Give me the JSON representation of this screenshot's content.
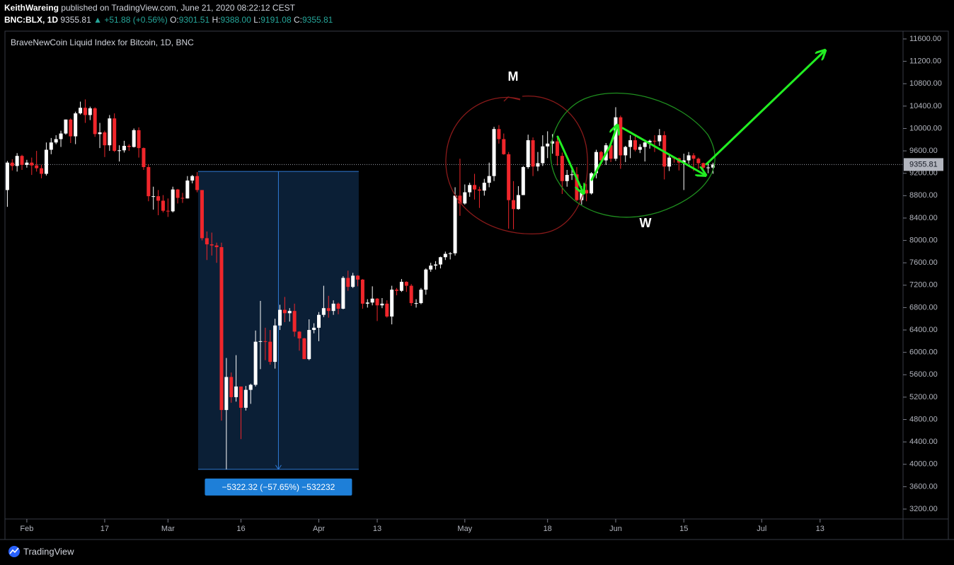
{
  "header": {
    "author": "KeithWareing",
    "published": "published on TradingView.com, June 21, 2020 08:22:12 CEST",
    "symbol": "BNC:BLX, 1D",
    "last": "9355.81",
    "change": "+51.88 (+0.56%)",
    "open_label": "O:",
    "open": "9301.51",
    "high_label": "H:",
    "high": "9388.00",
    "low_label": "L:",
    "low": "9191.08",
    "close_label": "C:",
    "close": "9355.81"
  },
  "footer": {
    "brand": "TradingView"
  },
  "chart_data": {
    "type": "candlestick",
    "title": "BraveNewCoin Liquid Index for Bitcoin, 1D, BNC",
    "up_color": "#ffffff",
    "down_color": "#f0262b",
    "xlim": [
      -0.35,
      183.9
    ],
    "ylim": [
      3023,
      11739
    ],
    "xticks": [
      {
        "value": 4,
        "label": "Feb"
      },
      {
        "value": 20,
        "label": "17"
      },
      {
        "value": 33,
        "label": "Mar"
      },
      {
        "value": 48,
        "label": "16"
      },
      {
        "value": 64,
        "label": "Apr"
      },
      {
        "value": 76,
        "label": "13"
      },
      {
        "value": 94,
        "label": "May"
      },
      {
        "value": 111,
        "label": "18"
      },
      {
        "value": 125,
        "label": "Jun"
      },
      {
        "value": 139,
        "label": "15"
      },
      {
        "value": 155,
        "label": "Jul"
      },
      {
        "value": 167,
        "label": "13"
      }
    ],
    "yticks": [
      {
        "value": 3200,
        "label": "3200.00"
      },
      {
        "value": 3600,
        "label": "3600.00"
      },
      {
        "value": 4000,
        "label": "4000.00"
      },
      {
        "value": 4400,
        "label": "4400.00"
      },
      {
        "value": 4800,
        "label": "4800.00"
      },
      {
        "value": 5200,
        "label": "5200.00"
      },
      {
        "value": 5600,
        "label": "5600.00"
      },
      {
        "value": 6000,
        "label": "6000.00"
      },
      {
        "value": 6400,
        "label": "6400.00"
      },
      {
        "value": 6800,
        "label": "6800.00"
      },
      {
        "value": 7200,
        "label": "7200.00"
      },
      {
        "value": 7600,
        "label": "7600.00"
      },
      {
        "value": 8000,
        "label": "8000.00"
      },
      {
        "value": 8400,
        "label": "8400.00"
      },
      {
        "value": 8800,
        "label": "8800.00"
      },
      {
        "value": 9200,
        "label": "9200.00"
      },
      {
        "value": 9600,
        "label": "9600.00"
      },
      {
        "value": 10000,
        "label": "10000.00"
      },
      {
        "value": 10400,
        "label": "10400.00"
      },
      {
        "value": 10800,
        "label": "10800.00"
      },
      {
        "value": 11200,
        "label": "11200.00"
      },
      {
        "value": 11600,
        "label": "11600.00"
      }
    ],
    "candles": [
      [
        8900,
        9420,
        8600,
        9390
      ],
      [
        9390,
        9450,
        9250,
        9330
      ],
      [
        9330,
        9560,
        9230,
        9510
      ],
      [
        9510,
        9530,
        9260,
        9350
      ],
      [
        9350,
        9440,
        9300,
        9390
      ],
      [
        9390,
        9480,
        9170,
        9340
      ],
      [
        9340,
        9600,
        9230,
        9290
      ],
      [
        9290,
        9350,
        9110,
        9190
      ],
      [
        9190,
        9750,
        9160,
        9620
      ],
      [
        9620,
        9830,
        9540,
        9750
      ],
      [
        9750,
        9880,
        9720,
        9810
      ],
      [
        9810,
        9960,
        9670,
        9910
      ],
      [
        9910,
        10160,
        9890,
        10160
      ],
      [
        10160,
        10180,
        9740,
        9860
      ],
      [
        9860,
        10300,
        9720,
        10270
      ],
      [
        10270,
        10480,
        10250,
        10370
      ],
      [
        10370,
        10520,
        10100,
        10240
      ],
      [
        10240,
        10390,
        10150,
        10360
      ],
      [
        10360,
        10380,
        9850,
        9900
      ],
      [
        9900,
        10100,
        9650,
        9930
      ],
      [
        9930,
        9960,
        9490,
        9700
      ],
      [
        9700,
        10240,
        9600,
        10180
      ],
      [
        10180,
        10270,
        9580,
        9600
      ],
      [
        9600,
        9700,
        9410,
        9610
      ],
      [
        9610,
        9780,
        9570,
        9690
      ],
      [
        9690,
        9720,
        9600,
        9670
      ],
      [
        9670,
        10000,
        9660,
        9970
      ],
      [
        9970,
        10020,
        9480,
        9650
      ],
      [
        9650,
        9660,
        9260,
        9310
      ],
      [
        9310,
        9360,
        8700,
        8790
      ],
      [
        8790,
        8960,
        8550,
        8790
      ],
      [
        8790,
        8900,
        8450,
        8710
      ],
      [
        8710,
        8810,
        8500,
        8530
      ],
      [
        8530,
        8750,
        8420,
        8520
      ],
      [
        8520,
        8960,
        8500,
        8910
      ],
      [
        8910,
        8920,
        8660,
        8760
      ],
      [
        8760,
        8850,
        8670,
        8750
      ],
      [
        8750,
        9150,
        8750,
        9070
      ],
      [
        9070,
        9170,
        9020,
        9150
      ],
      [
        9150,
        9220,
        8860,
        8900
      ],
      [
        8900,
        8900,
        8000,
        8040
      ],
      [
        8040,
        8160,
        7650,
        7930
      ],
      [
        7930,
        8140,
        7730,
        7910
      ],
      [
        7910,
        7960,
        7600,
        7880
      ],
      [
        7880,
        7960,
        4780,
        4970
      ],
      [
        4970,
        5900,
        3910,
        5560
      ],
      [
        5560,
        5640,
        5100,
        5200
      ],
      [
        5200,
        5950,
        5120,
        5390
      ],
      [
        5390,
        5390,
        4450,
        5010
      ],
      [
        5010,
        5400,
        4960,
        5330
      ],
      [
        5330,
        5440,
        5080,
        5420
      ],
      [
        5420,
        6390,
        5390,
        6190
      ],
      [
        6190,
        6920,
        5700,
        6200
      ],
      [
        6200,
        6440,
        5860,
        6190
      ],
      [
        6190,
        6400,
        5780,
        5830
      ],
      [
        5830,
        6600,
        5710,
        6480
      ],
      [
        6480,
        6850,
        6400,
        6760
      ],
      [
        6760,
        6990,
        6540,
        6700
      ],
      [
        6700,
        6790,
        6550,
        6740
      ],
      [
        6740,
        6870,
        6280,
        6370
      ],
      [
        6370,
        6380,
        6030,
        6250
      ],
      [
        6250,
        6260,
        5880,
        5880
      ],
      [
        5880,
        6590,
        5860,
        6400
      ],
      [
        6400,
        6520,
        6340,
        6440
      ],
      [
        6440,
        6720,
        6200,
        6670
      ],
      [
        6670,
        7190,
        6630,
        6790
      ],
      [
        6790,
        7010,
        6620,
        6740
      ],
      [
        6740,
        6930,
        6670,
        6870
      ],
      [
        6870,
        6890,
        6680,
        6780
      ],
      [
        6780,
        7360,
        6770,
        7330
      ],
      [
        7330,
        7460,
        7100,
        7170
      ],
      [
        7170,
        7420,
        7150,
        7370
      ],
      [
        7370,
        7380,
        7180,
        7300
      ],
      [
        7300,
        7310,
        6780,
        6870
      ],
      [
        6870,
        6950,
        6800,
        6890
      ],
      [
        6890,
        7180,
        6840,
        6960
      ],
      [
        6960,
        6970,
        6560,
        6840
      ],
      [
        6840,
        6970,
        6790,
        6870
      ],
      [
        6870,
        6930,
        6620,
        6640
      ],
      [
        6640,
        7190,
        6500,
        7120
      ],
      [
        7120,
        7150,
        7020,
        7100
      ],
      [
        7100,
        7310,
        7080,
        7260
      ],
      [
        7260,
        7270,
        7080,
        7190
      ],
      [
        7190,
        7220,
        6830,
        6880
      ],
      [
        6880,
        6950,
        6800,
        6880
      ],
      [
        6880,
        7150,
        6860,
        7120
      ],
      [
        7120,
        7500,
        7030,
        7480
      ],
      [
        7480,
        7600,
        7440,
        7550
      ],
      [
        7550,
        7630,
        7480,
        7570
      ],
      [
        7570,
        7710,
        7500,
        7700
      ],
      [
        7700,
        7800,
        7650,
        7760
      ],
      [
        7760,
        7790,
        7660,
        7770
      ],
      [
        7770,
        8950,
        7730,
        8800
      ],
      [
        8800,
        9460,
        8440,
        8660
      ],
      [
        8660,
        9000,
        8640,
        8860
      ],
      [
        8860,
        9030,
        8780,
        8990
      ],
      [
        8990,
        9190,
        8730,
        8910
      ],
      [
        8910,
        8960,
        8580,
        8890
      ],
      [
        8890,
        9100,
        8800,
        9030
      ],
      [
        9030,
        9390,
        8950,
        9150
      ],
      [
        9150,
        10030,
        9060,
        9990
      ],
      [
        9990,
        10060,
        9730,
        9810
      ],
      [
        9810,
        9910,
        9530,
        9540
      ],
      [
        9540,
        9580,
        8210,
        8720
      ],
      [
        8720,
        9060,
        8200,
        8560
      ],
      [
        8560,
        8970,
        8550,
        8810
      ],
      [
        8810,
        9330,
        8810,
        9310
      ],
      [
        9310,
        9890,
        9280,
        9790
      ],
      [
        9790,
        9840,
        9150,
        9320
      ],
      [
        9320,
        9580,
        9240,
        9380
      ],
      [
        9380,
        9880,
        9330,
        9680
      ],
      [
        9680,
        9950,
        9470,
        9730
      ],
      [
        9730,
        9900,
        9550,
        9770
      ],
      [
        9770,
        9850,
        9340,
        9510
      ],
      [
        9510,
        9570,
        8830,
        9060
      ],
      [
        9060,
        9260,
        8960,
        9170
      ],
      [
        9170,
        9300,
        9080,
        9180
      ],
      [
        9180,
        9310,
        8700,
        8720
      ],
      [
        8720,
        8970,
        8640,
        8900
      ],
      [
        8900,
        9010,
        8700,
        8840
      ],
      [
        8840,
        9220,
        8820,
        9200
      ],
      [
        9200,
        9620,
        9110,
        9580
      ],
      [
        9580,
        9600,
        9340,
        9430
      ],
      [
        9430,
        9740,
        9350,
        9700
      ],
      [
        9700,
        9700,
        9400,
        9460
      ],
      [
        9460,
        10380,
        9420,
        10200
      ],
      [
        10200,
        10230,
        9280,
        9520
      ],
      [
        9520,
        9690,
        9400,
        9670
      ],
      [
        9670,
        9880,
        9470,
        9790
      ],
      [
        9790,
        9860,
        9590,
        9620
      ],
      [
        9620,
        9720,
        9560,
        9670
      ],
      [
        9670,
        9800,
        9410,
        9750
      ],
      [
        9750,
        9800,
        9640,
        9780
      ],
      [
        9780,
        9880,
        9580,
        9770
      ],
      [
        9770,
        9990,
        9690,
        9880
      ],
      [
        9880,
        9950,
        9090,
        9320
      ],
      [
        9320,
        9550,
        9240,
        9480
      ],
      [
        9480,
        9500,
        9390,
        9470
      ],
      [
        9470,
        9480,
        9250,
        9390
      ],
      [
        9390,
        9550,
        8900,
        9430
      ],
      [
        9430,
        9580,
        9370,
        9520
      ],
      [
        9520,
        9560,
        9240,
        9460
      ],
      [
        9460,
        9480,
        9280,
        9380
      ],
      [
        9380,
        9390,
        9220,
        9300
      ],
      [
        9300,
        9400,
        9200,
        9303.93
      ],
      [
        9301.51,
        9388,
        9191.08,
        9355.81
      ]
    ],
    "last_price": {
      "value": 9355.81
    },
    "measure": {
      "x": [
        39.2,
        72.2
      ],
      "top": 9232,
      "bottom": 3909.68,
      "label": "−5322.32 (−57.65%) −532232"
    },
    "annotations": [
      {
        "text": "M"
      },
      {
        "text": "W"
      }
    ]
  }
}
